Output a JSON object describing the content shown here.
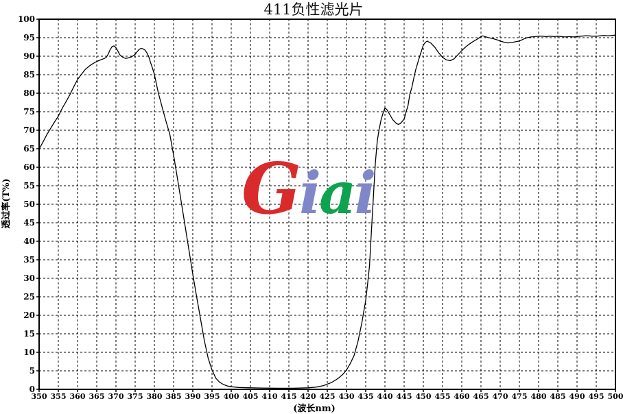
{
  "page": {
    "background": "#ffffff"
  },
  "chart_data": {
    "type": "line",
    "title": "411负性滤光片",
    "xlabel": "(波长nm)",
    "ylabel": "透过率(T%)",
    "xlim": [
      350,
      500
    ],
    "ylim": [
      0,
      100
    ],
    "x_tick_step": 5,
    "y_tick_step": 5,
    "x_ticks": [
      350,
      355,
      360,
      365,
      370,
      375,
      380,
      385,
      390,
      395,
      400,
      405,
      410,
      415,
      420,
      425,
      430,
      435,
      440,
      445,
      450,
      455,
      460,
      465,
      470,
      475,
      480,
      485,
      490,
      495,
      500
    ],
    "y_ticks": [
      0,
      5,
      10,
      15,
      20,
      25,
      30,
      35,
      40,
      45,
      50,
      55,
      60,
      65,
      70,
      75,
      80,
      85,
      90,
      95,
      100
    ],
    "grid": "dashed, both axes, every 5 units",
    "legend": "none",
    "line_color": "#000000",
    "series": [
      {
        "name": "透过率(T%)",
        "points": [
          [
            350,
            64.9
          ],
          [
            351,
            66.8
          ],
          [
            352,
            68.8
          ],
          [
            353,
            70.5
          ],
          [
            354,
            72.2
          ],
          [
            355,
            73.8
          ],
          [
            356,
            75.9
          ],
          [
            357,
            77.7
          ],
          [
            358,
            79.6
          ],
          [
            359,
            81.7
          ],
          [
            360,
            83.7
          ],
          [
            361,
            85.1
          ],
          [
            362,
            86.4
          ],
          [
            363,
            87.3
          ],
          [
            364,
            88.0
          ],
          [
            365,
            88.6
          ],
          [
            366,
            89.0
          ],
          [
            367,
            89.4
          ],
          [
            367.5,
            89.7
          ],
          [
            368,
            90.6
          ],
          [
            368.5,
            91.8
          ],
          [
            369,
            92.6
          ],
          [
            369.5,
            92.8
          ],
          [
            370,
            92.3
          ],
          [
            370.5,
            91.4
          ],
          [
            371,
            90.4
          ],
          [
            371.5,
            89.9
          ],
          [
            372,
            89.6
          ],
          [
            372.5,
            89.4
          ],
          [
            373,
            89.5
          ],
          [
            374,
            89.8
          ],
          [
            375,
            90.5
          ],
          [
            375.5,
            91.2
          ],
          [
            376,
            91.8
          ],
          [
            376.5,
            92.1
          ],
          [
            377,
            92.0
          ],
          [
            377.5,
            91.7
          ],
          [
            378,
            91.0
          ],
          [
            378.5,
            90.0
          ],
          [
            379,
            88.3
          ],
          [
            379.5,
            86.8
          ],
          [
            380,
            85.1
          ],
          [
            381,
            80.2
          ],
          [
            382,
            76.3
          ],
          [
            383,
            72.5
          ],
          [
            384,
            69.0
          ],
          [
            385,
            63.3
          ],
          [
            386,
            57.0
          ],
          [
            387,
            50.6
          ],
          [
            388,
            44.1
          ],
          [
            389,
            37.6
          ],
          [
            390,
            31.1
          ],
          [
            391,
            25.0
          ],
          [
            392,
            19.1
          ],
          [
            393,
            13.2
          ],
          [
            394,
            8.4
          ],
          [
            395,
            5.2
          ],
          [
            396,
            3.0
          ],
          [
            397,
            1.9
          ],
          [
            398,
            1.3
          ],
          [
            399,
            0.9
          ],
          [
            400,
            0.7
          ],
          [
            402,
            0.5
          ],
          [
            405,
            0.4
          ],
          [
            408,
            0.35
          ],
          [
            412,
            0.3
          ],
          [
            416,
            0.3
          ],
          [
            420,
            0.4
          ],
          [
            422,
            0.6
          ],
          [
            424,
            1.0
          ],
          [
            425,
            1.4
          ],
          [
            426,
            1.8
          ],
          [
            427,
            2.4
          ],
          [
            428,
            3.1
          ],
          [
            429,
            4.0
          ],
          [
            430,
            5.2
          ],
          [
            431,
            7.0
          ],
          [
            432,
            9.2
          ],
          [
            433,
            13.0
          ],
          [
            434,
            18.0
          ],
          [
            435,
            24.0
          ],
          [
            435.5,
            28.5
          ],
          [
            436,
            33.5
          ],
          [
            436.5,
            43.0
          ],
          [
            437,
            52.0
          ],
          [
            437.5,
            61.0
          ],
          [
            438,
            67.0
          ],
          [
            438.5,
            70.3
          ],
          [
            439,
            72.8
          ],
          [
            439.5,
            74.6
          ],
          [
            440,
            76.0
          ],
          [
            440.5,
            75.6
          ],
          [
            441,
            74.7
          ],
          [
            442,
            72.9
          ],
          [
            443,
            71.8
          ],
          [
            443.5,
            71.6
          ],
          [
            444,
            71.8
          ],
          [
            445,
            73.0
          ],
          [
            445.5,
            74.9
          ],
          [
            446,
            76.6
          ],
          [
            446.5,
            79.8
          ],
          [
            447,
            81.5
          ],
          [
            447.5,
            84.0
          ],
          [
            448,
            86.3
          ],
          [
            449,
            89.8
          ],
          [
            450,
            93.0
          ],
          [
            450.5,
            93.7
          ],
          [
            451,
            94.1
          ],
          [
            452,
            93.5
          ],
          [
            453,
            92.4
          ],
          [
            454,
            90.9
          ],
          [
            455,
            89.7
          ],
          [
            456,
            89.0
          ],
          [
            457,
            88.8
          ],
          [
            458,
            89.3
          ],
          [
            459,
            90.4
          ],
          [
            460,
            91.5
          ],
          [
            461,
            92.5
          ],
          [
            462,
            93.3
          ],
          [
            463,
            94.0
          ],
          [
            464,
            94.6
          ],
          [
            465,
            95.3
          ],
          [
            465.5,
            95.5
          ],
          [
            466,
            95.3
          ],
          [
            467,
            95.0
          ],
          [
            468,
            94.8
          ],
          [
            469,
            94.5
          ],
          [
            470,
            94.1
          ],
          [
            471,
            93.8
          ],
          [
            472,
            93.6
          ],
          [
            473,
            93.7
          ],
          [
            474,
            93.9
          ],
          [
            475,
            94.1
          ],
          [
            476,
            94.6
          ],
          [
            477,
            95.0
          ],
          [
            478,
            95.2
          ],
          [
            479,
            95.3
          ],
          [
            480,
            95.4
          ],
          [
            481,
            95.4
          ],
          [
            482,
            95.3
          ],
          [
            483,
            95.4
          ],
          [
            484,
            95.3
          ],
          [
            485,
            95.4
          ],
          [
            486,
            95.3
          ],
          [
            487,
            95.2
          ],
          [
            488,
            95.3
          ],
          [
            489,
            95.2
          ],
          [
            490,
            95.3
          ],
          [
            491,
            95.4
          ],
          [
            492,
            95.5
          ],
          [
            493,
            95.5
          ],
          [
            494,
            95.4
          ],
          [
            495,
            95.4
          ],
          [
            496,
            95.5
          ],
          [
            497,
            95.6
          ],
          [
            498,
            95.5
          ],
          [
            499,
            95.6
          ],
          [
            500,
            95.7
          ]
        ]
      }
    ]
  },
  "watermark": {
    "text": "Giai",
    "letters": [
      {
        "ch": "G",
        "color": "#d92b2b"
      },
      {
        "ch": "i",
        "color": "#8087c8"
      },
      {
        "ch": "a",
        "color": "#0fa24f"
      },
      {
        "ch": "i",
        "color": "#8087c8"
      }
    ]
  }
}
